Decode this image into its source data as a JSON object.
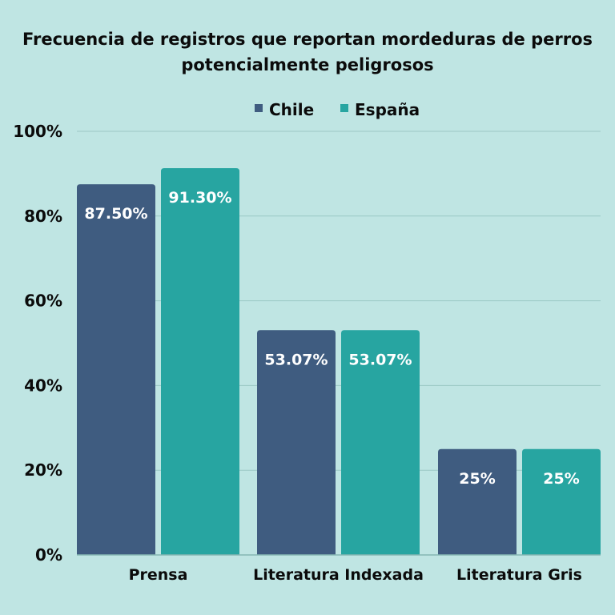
{
  "chart_data": {
    "type": "bar",
    "title_lines": [
      "Frecuencia de registros que reportan mordeduras de perros",
      "potencialmente peligrosos"
    ],
    "categories": [
      "Prensa",
      "Literatura Indexada",
      "Literatura Gris"
    ],
    "series": [
      {
        "name": "Chile",
        "values": [
          87.5,
          53.07,
          25
        ],
        "labels": [
          "87.50%",
          "53.07%",
          "25%"
        ],
        "color": "#3f5c80"
      },
      {
        "name": "España",
        "values": [
          91.3,
          53.07,
          25
        ],
        "labels": [
          "91.30%",
          "53.07%",
          "25%"
        ],
        "color": "#27a5a1"
      }
    ],
    "ylim": [
      0,
      100
    ],
    "yticks": [
      0,
      20,
      40,
      60,
      80,
      100
    ],
    "ytick_labels": [
      "0%",
      "20%",
      "40%",
      "60%",
      "80%",
      "100%"
    ],
    "grid": true,
    "legend_position": "top-center",
    "colors": {
      "background": "#bfe5e3",
      "grid": "#9cc8c5"
    }
  }
}
